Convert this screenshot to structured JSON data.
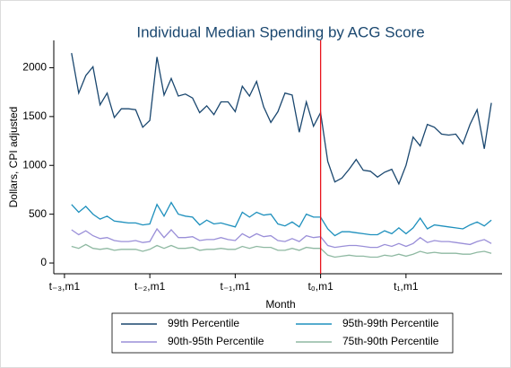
{
  "chart_data": {
    "type": "line",
    "title": "Individual Median Spending by ACG Score",
    "x_label": "Month",
    "y_label": "Dollars, CPI adjusted",
    "x": [
      -35,
      -34,
      -33,
      -32,
      -31,
      -30,
      -29,
      -28,
      -27,
      -26,
      -25,
      -24,
      -23,
      -22,
      -21,
      -20,
      -19,
      -18,
      -17,
      -16,
      -15,
      -14,
      -13,
      -12,
      -11,
      -10,
      -9,
      -8,
      -7,
      -6,
      -5,
      -4,
      -3,
      -2,
      -1,
      0,
      1,
      2,
      3,
      4,
      5,
      6,
      7,
      8,
      9,
      10,
      11,
      12,
      13,
      14,
      15,
      16,
      17,
      18,
      19,
      20,
      21,
      22,
      23,
      24
    ],
    "series": [
      {
        "name": "99th Percentile",
        "color": "#1a476f",
        "values": [
          2150,
          1740,
          1920,
          2010,
          1620,
          1740,
          1490,
          1580,
          1580,
          1570,
          1390,
          1460,
          2110,
          1720,
          1890,
          1710,
          1730,
          1690,
          1540,
          1610,
          1520,
          1650,
          1650,
          1550,
          1810,
          1710,
          1860,
          1600,
          1440,
          1550,
          1740,
          1720,
          1340,
          1650,
          1400,
          1540,
          1040,
          830,
          870,
          960,
          1060,
          950,
          940,
          880,
          930,
          960,
          810,
          1000,
          1290,
          1200,
          1420,
          1390,
          1320,
          1310,
          1320,
          1220,
          1420,
          1570,
          1170,
          1640
        ]
      },
      {
        "name": "95th-99th Percentile",
        "color": "#1e90bd",
        "values": [
          600,
          520,
          580,
          500,
          450,
          480,
          430,
          420,
          410,
          410,
          390,
          400,
          600,
          480,
          620,
          500,
          480,
          470,
          390,
          440,
          400,
          410,
          390,
          370,
          520,
          470,
          520,
          490,
          500,
          400,
          380,
          420,
          370,
          500,
          470,
          470,
          350,
          280,
          320,
          320,
          310,
          300,
          290,
          290,
          330,
          300,
          360,
          300,
          360,
          460,
          350,
          390,
          380,
          370,
          360,
          350,
          390,
          420,
          380,
          440
        ]
      },
      {
        "name": "90th-95th Percentile",
        "color": "#9a8fd8",
        "values": [
          340,
          290,
          330,
          280,
          250,
          260,
          230,
          220,
          220,
          230,
          210,
          220,
          350,
          260,
          340,
          260,
          260,
          270,
          230,
          240,
          240,
          260,
          240,
          230,
          300,
          260,
          300,
          270,
          280,
          230,
          220,
          250,
          220,
          280,
          260,
          270,
          180,
          160,
          170,
          180,
          180,
          170,
          160,
          160,
          190,
          170,
          200,
          170,
          200,
          260,
          210,
          230,
          220,
          220,
          210,
          200,
          190,
          220,
          240,
          200
        ]
      },
      {
        "name": "75th-90th Percentile",
        "color": "#8fb9a2",
        "values": [
          170,
          150,
          190,
          150,
          140,
          150,
          130,
          140,
          140,
          140,
          120,
          140,
          180,
          150,
          180,
          150,
          150,
          160,
          130,
          140,
          140,
          150,
          140,
          140,
          170,
          150,
          170,
          160,
          160,
          130,
          130,
          150,
          130,
          160,
          150,
          150,
          80,
          60,
          70,
          80,
          70,
          70,
          60,
          60,
          80,
          70,
          90,
          70,
          90,
          120,
          100,
          110,
          100,
          100,
          100,
          90,
          90,
          110,
          120,
          100
        ]
      }
    ],
    "xlim": [
      -37.5,
      25.5
    ],
    "xticks": [
      {
        "value": -36,
        "label": "t₋₃,m1"
      },
      {
        "value": -24,
        "label": "t₋₂,m1"
      },
      {
        "value": -12,
        "label": "t₋₁,m1"
      },
      {
        "value": 0,
        "label": "t₀,m1"
      },
      {
        "value": 12,
        "label": "t₁,m1"
      }
    ],
    "ylim": [
      -110,
      2280
    ],
    "yticks": [
      0,
      500,
      1000,
      1500,
      2000
    ],
    "vline": {
      "value": 0,
      "color": "#e8141c"
    },
    "grid": false,
    "legend": "bottom"
  }
}
